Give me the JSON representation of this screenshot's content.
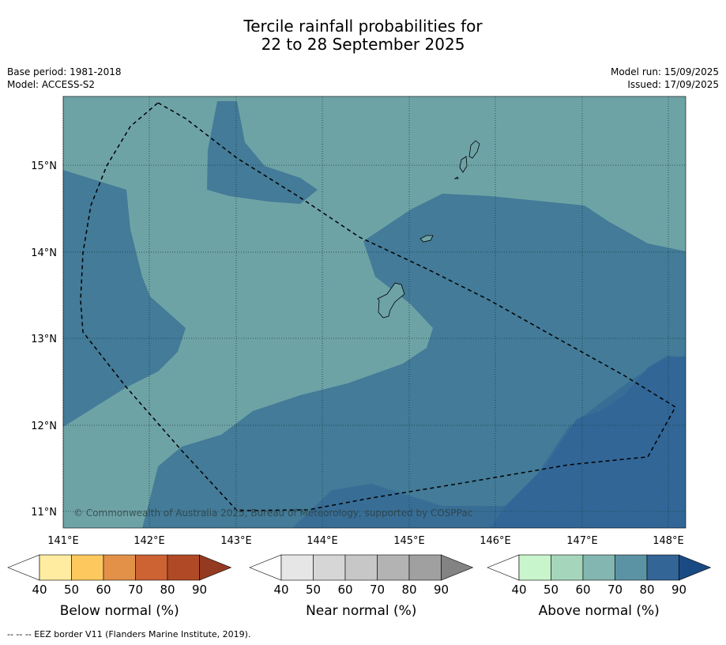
{
  "title": {
    "line1": "Tercile rainfall probabilities for",
    "line2": "22 to 28 September 2025"
  },
  "meta": {
    "base_period": "Base period: 1981-2018",
    "model": "Model: ACCESS-S2",
    "model_run": "Model run: 15/09/2025",
    "issued": "Issued: 17/09/2025"
  },
  "map": {
    "lat_labels": [
      "15°N",
      "14°N",
      "13°N",
      "12°N",
      "11°N"
    ],
    "lon_labels": [
      "141°E",
      "142°E",
      "143°E",
      "144°E",
      "145°E",
      "146°E",
      "147°E",
      "148°E"
    ],
    "copyright": "© Commonwealth of Australia 2025, Bureau of Meteorology, supported by COSPPac",
    "colors": {
      "above_50_60": "#6ea3a6",
      "above_60_70": "#437b98",
      "above_70_80": "#386e96",
      "above_80_90": "#2f6397"
    }
  },
  "colorbars": [
    {
      "label": "Below normal (%)",
      "ticks": [
        "40",
        "50",
        "60",
        "70",
        "80",
        "90"
      ],
      "colors": [
        "#ffffff",
        "#ffeca0",
        "#fdc95f",
        "#e39149",
        "#cd6233",
        "#b04a26",
        "#943a20"
      ]
    },
    {
      "label": "Near normal (%)",
      "ticks": [
        "40",
        "50",
        "60",
        "70",
        "80",
        "90"
      ],
      "colors": [
        "#ffffff",
        "#e6e6e6",
        "#d6d6d6",
        "#c7c7c7",
        "#b3b3b3",
        "#a0a0a0",
        "#838383"
      ]
    },
    {
      "label": "Above normal (%)",
      "ticks": [
        "40",
        "50",
        "60",
        "70",
        "80",
        "90"
      ],
      "colors": [
        "#ffffff",
        "#c9f5cc",
        "#a5d6bc",
        "#83b6b0",
        "#5c93a4",
        "#336597",
        "#1a4a83"
      ]
    }
  ],
  "footer": "--  --  -- EEZ border V11 (Flanders Marine Institute, 2019)."
}
